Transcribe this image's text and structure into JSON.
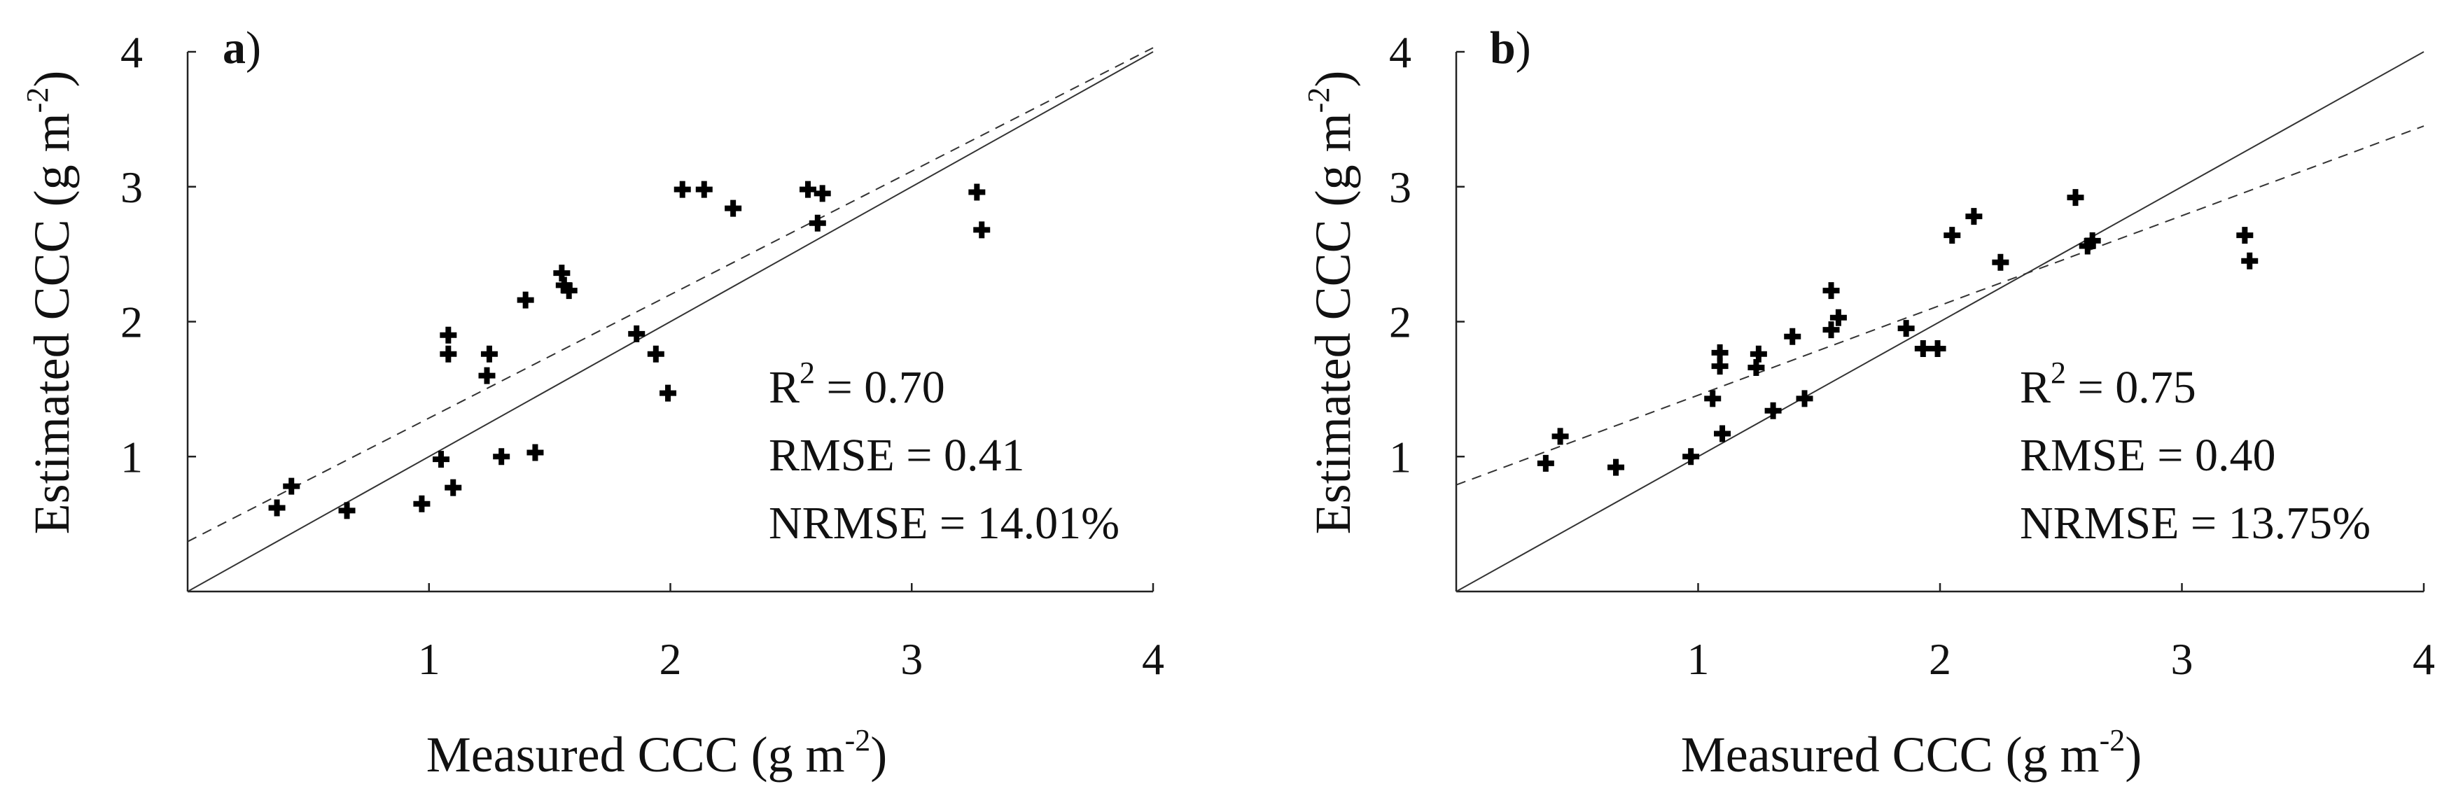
{
  "figure": {
    "panels": [
      {
        "id": "a",
        "label_letter": "a",
        "label_paren": ")",
        "xlabel": "Measured CCC (g m",
        "xlabel_exp": "-2",
        "xlabel_end": ")",
        "ylabel": "Estimated CCC (g m",
        "ylabel_exp": "-2",
        "ylabel_end": ")",
        "stats": {
          "r2_label": "R",
          "r2_exp": "2",
          "r2_value": " = 0.70",
          "rmse": "RMSE = 0.41",
          "nrmse": "NRMSE = 14.01%"
        }
      },
      {
        "id": "b",
        "label_letter": "b",
        "label_paren": ")",
        "xlabel": "Measured CCC (g m",
        "xlabel_exp": "-2",
        "xlabel_end": ")",
        "ylabel": "Estimated CCC (g m",
        "ylabel_exp": "-2",
        "ylabel_end": ")",
        "stats": {
          "r2_label": "R",
          "r2_exp": "2",
          "r2_value": " = 0.75",
          "rmse": "RMSE = 0.40",
          "nrmse": "NRMSE = 13.75%"
        }
      }
    ]
  },
  "chart_data": [
    {
      "type": "scatter",
      "panel": "a",
      "title": "",
      "xlabel": "Measured CCC (g m-2)",
      "ylabel": "Estimated CCC (g m-2)",
      "xlim": [
        0,
        4
      ],
      "ylim": [
        0,
        4
      ],
      "xticks": [
        "1",
        "2",
        "3",
        "4"
      ],
      "yticks": [
        "1",
        "2",
        "3",
        "4"
      ],
      "marker": "plus",
      "points": [
        [
          0.37,
          0.62
        ],
        [
          0.43,
          0.78
        ],
        [
          0.66,
          0.6
        ],
        [
          0.97,
          0.65
        ],
        [
          1.05,
          0.98
        ],
        [
          1.1,
          0.77
        ],
        [
          1.08,
          1.76
        ],
        [
          1.08,
          1.9
        ],
        [
          1.24,
          1.6
        ],
        [
          1.25,
          1.76
        ],
        [
          1.3,
          1.0
        ],
        [
          1.4,
          2.16
        ],
        [
          1.44,
          1.03
        ],
        [
          1.55,
          2.36
        ],
        [
          1.56,
          2.27
        ],
        [
          1.58,
          2.23
        ],
        [
          1.86,
          1.91
        ],
        [
          1.94,
          1.76
        ],
        [
          1.99,
          1.47
        ],
        [
          2.05,
          2.98
        ],
        [
          2.14,
          2.98
        ],
        [
          2.26,
          2.84
        ],
        [
          2.57,
          2.98
        ],
        [
          2.61,
          2.73
        ],
        [
          2.63,
          2.95
        ],
        [
          3.27,
          2.96
        ],
        [
          3.29,
          2.68
        ]
      ],
      "one_to_one_line": {
        "style": "solid",
        "from": [
          0,
          0
        ],
        "to": [
          4,
          4
        ]
      },
      "regression_line": {
        "style": "dashed",
        "slope": 0.915,
        "intercept": 0.37
      },
      "annotations": [
        "R2 = 0.70",
        "RMSE = 0.41",
        "NRMSE = 14.01%"
      ]
    },
    {
      "type": "scatter",
      "panel": "b",
      "title": "",
      "xlabel": "Measured CCC (g m-2)",
      "ylabel": "Estimated CCC (g m-2)",
      "xlim": [
        0,
        4
      ],
      "ylim": [
        0,
        4
      ],
      "xticks": [
        "1",
        "2",
        "3",
        "4"
      ],
      "yticks": [
        "1",
        "2",
        "3",
        "4"
      ],
      "marker": "plus",
      "points": [
        [
          0.37,
          0.95
        ],
        [
          0.43,
          1.15
        ],
        [
          0.66,
          0.92
        ],
        [
          0.97,
          1.0
        ],
        [
          1.06,
          1.43
        ],
        [
          1.1,
          1.17
        ],
        [
          1.09,
          1.67
        ],
        [
          1.09,
          1.77
        ],
        [
          1.24,
          1.66
        ],
        [
          1.25,
          1.76
        ],
        [
          1.31,
          1.34
        ],
        [
          1.39,
          1.89
        ],
        [
          1.44,
          1.43
        ],
        [
          1.55,
          2.23
        ],
        [
          1.55,
          1.94
        ],
        [
          1.58,
          2.03
        ],
        [
          1.86,
          1.95
        ],
        [
          1.93,
          1.8
        ],
        [
          1.99,
          1.8
        ],
        [
          2.05,
          2.64
        ],
        [
          2.14,
          2.78
        ],
        [
          2.25,
          2.44
        ],
        [
          2.56,
          2.92
        ],
        [
          2.61,
          2.56
        ],
        [
          2.63,
          2.6
        ],
        [
          3.26,
          2.64
        ],
        [
          3.28,
          2.45
        ]
      ],
      "one_to_one_line": {
        "style": "solid",
        "from": [
          0,
          0
        ],
        "to": [
          4,
          4
        ]
      },
      "regression_line": {
        "style": "dashed",
        "slope": 0.665,
        "intercept": 0.79
      },
      "annotations": [
        "R2 = 0.75",
        "RMSE = 0.40",
        "NRMSE = 13.75%"
      ]
    }
  ]
}
